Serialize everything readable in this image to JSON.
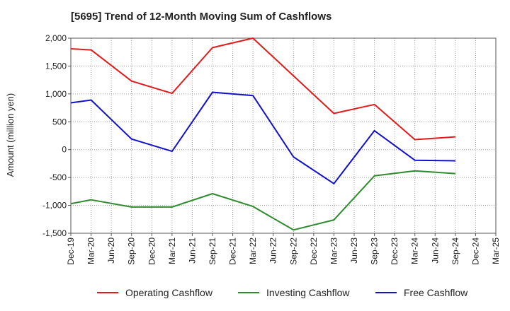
{
  "chart_data": {
    "type": "line",
    "title": "[5695]  Trend of 12-Month Moving Sum of Cashflows",
    "ylabel": "Amount (million yen)",
    "xlabel": "",
    "ylim": [
      -1500,
      2000
    ],
    "yticks": [
      2000,
      1500,
      1000,
      500,
      0,
      -500,
      -1000,
      -1500
    ],
    "ytick_labels": [
      "2,000",
      "1,500",
      "1,000",
      "500",
      "0",
      "-500",
      "-1,000",
      "-1,500"
    ],
    "categories": [
      "Dec-19",
      "Mar-20",
      "Jun-20",
      "Sep-20",
      "Dec-20",
      "Mar-21",
      "Jun-21",
      "Sep-21",
      "Dec-21",
      "Mar-22",
      "Jun-22",
      "Sep-22",
      "Dec-22",
      "Mar-23",
      "Jun-23",
      "Sep-23",
      "Dec-23",
      "Mar-24",
      "Jun-24",
      "Sep-24",
      "Dec-24",
      "Mar-25"
    ],
    "grid": true,
    "legend_position": "bottom",
    "series": [
      {
        "name": "Operating Cashflow",
        "color": "#e31a1c",
        "values": [
          1810,
          1790,
          null,
          1230,
          null,
          1010,
          null,
          1830,
          null,
          2000,
          null,
          null,
          null,
          650,
          null,
          810,
          null,
          180,
          null,
          230,
          null,
          null
        ]
      },
      {
        "name": "Investing Cashflow",
        "color": "#2e8b2e",
        "values": [
          -970,
          -900,
          null,
          -1030,
          null,
          -1030,
          null,
          -790,
          null,
          -1020,
          null,
          -1440,
          null,
          -1260,
          null,
          -470,
          null,
          -380,
          null,
          -430,
          null,
          null
        ]
      },
      {
        "name": "Free Cashflow",
        "color": "#1111cc",
        "values": [
          840,
          890,
          null,
          190,
          null,
          -30,
          null,
          1030,
          null,
          970,
          null,
          -130,
          null,
          -610,
          null,
          340,
          null,
          -190,
          null,
          -200,
          null,
          null
        ]
      }
    ]
  }
}
